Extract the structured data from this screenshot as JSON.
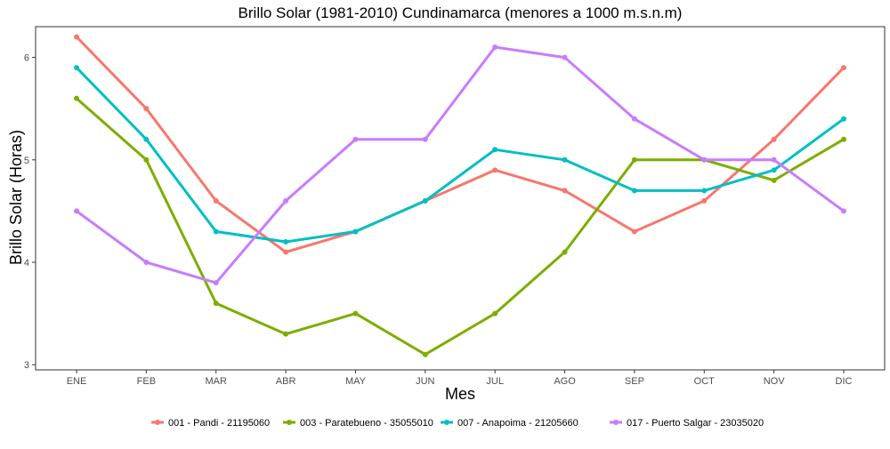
{
  "chart_data": {
    "type": "line",
    "title": "Brillo Solar (1981-2010) Cundinamarca (menores a 1000 m.s.n.m)",
    "xlabel": "Mes",
    "ylabel": "Brillo Solar (Horas)",
    "categories": [
      "ENE",
      "FEB",
      "MAR",
      "ABR",
      "MAY",
      "JUN",
      "JUL",
      "AGO",
      "SEP",
      "OCT",
      "NOV",
      "DIC"
    ],
    "yticks": [
      3,
      4,
      5,
      6
    ],
    "ylim": [
      2.95,
      6.3
    ],
    "grid": false,
    "legend_position": "bottom",
    "series": [
      {
        "name": "001 - Pandi - 21195060",
        "color": "#F8766D",
        "values": [
          6.2,
          5.5,
          4.6,
          4.1,
          4.3,
          4.6,
          4.9,
          4.7,
          4.3,
          4.6,
          5.2,
          5.9
        ]
      },
      {
        "name": "003 - Paratebueno - 35055010",
        "color": "#7CAE00",
        "values": [
          5.6,
          5.0,
          3.6,
          3.3,
          3.5,
          3.1,
          3.5,
          4.1,
          5.0,
          5.0,
          4.8,
          5.2
        ]
      },
      {
        "name": "007 - Anapoima - 21205660",
        "color": "#00BFC4",
        "values": [
          5.9,
          5.2,
          4.3,
          4.2,
          4.3,
          4.6,
          5.1,
          5.0,
          4.7,
          4.7,
          4.9,
          5.4
        ]
      },
      {
        "name": "017 - Puerto Salgar - 23035020",
        "color": "#C77CFF",
        "values": [
          4.5,
          4.0,
          3.8,
          4.6,
          5.2,
          5.2,
          6.1,
          6.0,
          5.4,
          5.0,
          5.0,
          4.5
        ]
      }
    ]
  }
}
